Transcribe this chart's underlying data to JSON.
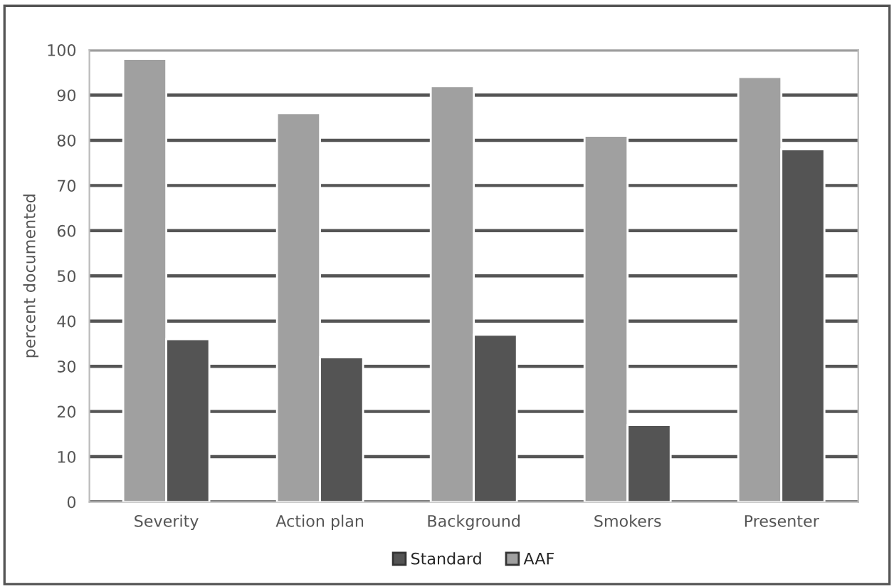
{
  "chart_data": {
    "type": "bar",
    "ylabel": "percent documented",
    "categories": [
      "Severity",
      "Action plan",
      "Background",
      "Smokers",
      "Presenter"
    ],
    "series": [
      {
        "name": "AAF",
        "color": "#a0a0a0",
        "values": [
          98,
          86,
          92,
          81,
          94
        ]
      },
      {
        "name": "Standard",
        "color": "#545454",
        "values": [
          36,
          32,
          37,
          17,
          78
        ]
      }
    ],
    "ylim": [
      0,
      100
    ],
    "yticks": [
      0,
      10,
      20,
      30,
      40,
      50,
      60,
      70,
      80,
      90,
      100
    ],
    "grid": "y",
    "legend": "bottom"
  }
}
